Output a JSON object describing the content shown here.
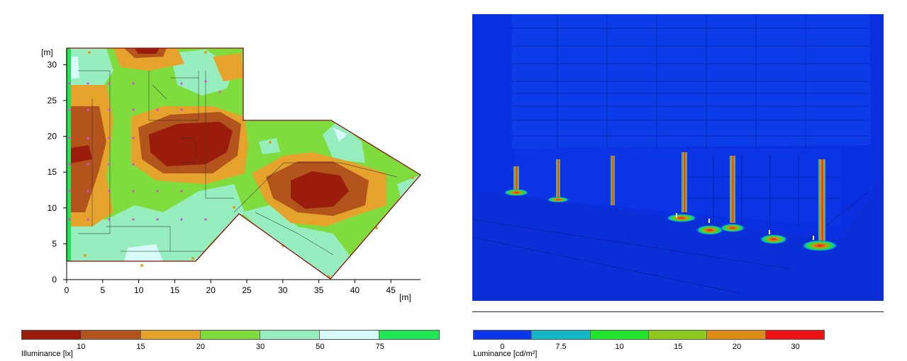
{
  "plan": {
    "x_unit_label": "[m]",
    "y_unit_label": "[m]",
    "x_ticks": [
      "0",
      "5",
      "10",
      "15",
      "20",
      "25",
      "30",
      "35",
      "40",
      "45"
    ],
    "y_ticks": [
      "0",
      "5",
      "10",
      "15",
      "20",
      "25",
      "30"
    ]
  },
  "illuminance_legend": {
    "title": "Illuminance [lx]",
    "colors": [
      "#9b1c0b",
      "#b2541b",
      "#e5a32c",
      "#7edc3c",
      "#96eebf",
      "#d6fbf8",
      "#1fe653"
    ],
    "labels": [
      "10",
      "15",
      "20",
      "30",
      "50",
      "75"
    ]
  },
  "luminance_legend": {
    "title": "Luminance [cd/m²]",
    "colors": [
      "#0a36ee",
      "#13b8c4",
      "#1fe62a",
      "#8ec91e",
      "#dd8c16",
      "#f01212"
    ],
    "labels": [
      "0",
      "7.5",
      "10",
      "15",
      "20",
      "30"
    ]
  }
}
